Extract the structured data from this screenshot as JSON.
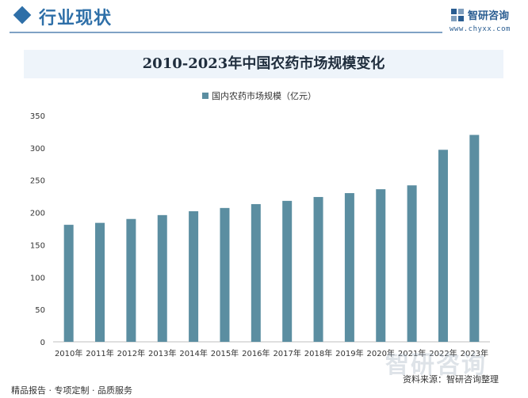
{
  "header": {
    "section_title": "行业现状",
    "brand_name": "智研咨询",
    "brand_url": "www.chyxx.com",
    "accent_color": "#2e6fa8"
  },
  "chart_data": {
    "type": "bar",
    "title": "2010-2023年中国农药市场规模变化",
    "categories": [
      "2010年",
      "2011年",
      "2012年",
      "2013年",
      "2014年",
      "2015年",
      "2016年",
      "2017年",
      "2018年",
      "2019年",
      "2020年",
      "2021年",
      "2022年",
      "2023年"
    ],
    "series": [
      {
        "name": "国内农药市场规模（亿元）",
        "values": [
          181,
          184,
          190,
          196,
          202,
          207,
          213,
          218,
          224,
          230,
          236,
          242,
          297,
          320
        ],
        "color": "#5b8ea1"
      }
    ],
    "ylim": [
      0,
      350
    ],
    "yticks": [
      "0",
      "50",
      "100",
      "150",
      "200",
      "250",
      "300",
      "350"
    ],
    "grid": false,
    "legend_position": "top-center"
  },
  "footer": {
    "left_text": "精品报告 · 专项定制 · 品质服务",
    "source": "资料来源：智研咨询整理",
    "watermark": "智研咨询"
  }
}
